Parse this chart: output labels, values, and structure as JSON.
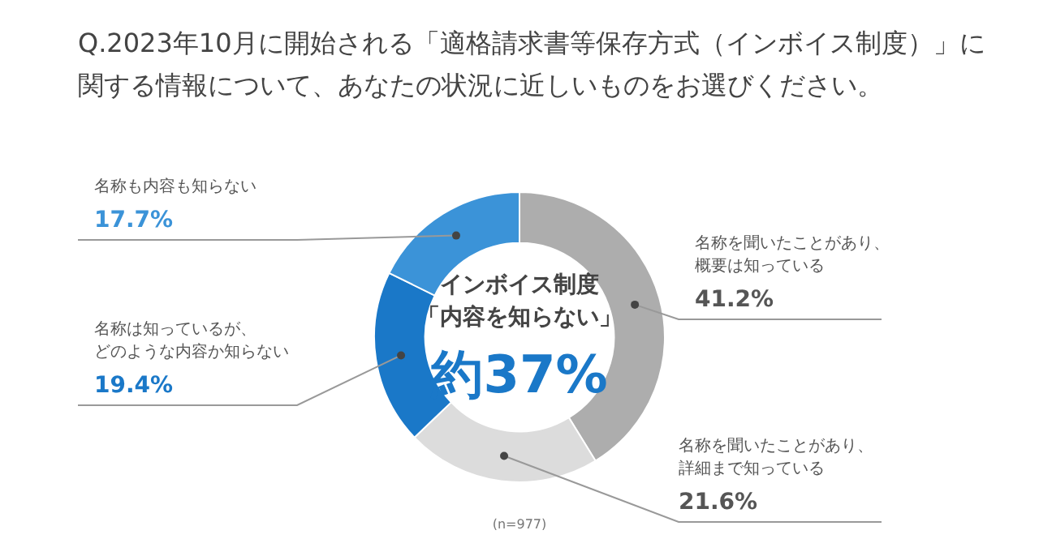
{
  "chart_data": {
    "type": "donut",
    "title": "Q.2023年10月に開始される「適格請求書等保存方式（インボイス制度）」に関する情報について、あなたの状況に近しいものをお選びください。",
    "categories": [
      "名称を聞いたことがあり、概要は知っている",
      "名称を聞いたことがあり、詳細まで知っている",
      "名称は知っているが、どのような内容か知らない",
      "名称も内容も知らない"
    ],
    "values": [
      41.2,
      21.6,
      19.4,
      17.7
    ],
    "colors": [
      "#adadad",
      "#dcdcdc",
      "#1a78c8",
      "#3b93d8"
    ],
    "value_labels": [
      "41.2%",
      "21.6%",
      "19.4%",
      "17.7%"
    ],
    "annotations": [
      "インボイス制度",
      "「内容を知らない」",
      "約37%",
      "(n=977)"
    ],
    "legend": false
  }
}
